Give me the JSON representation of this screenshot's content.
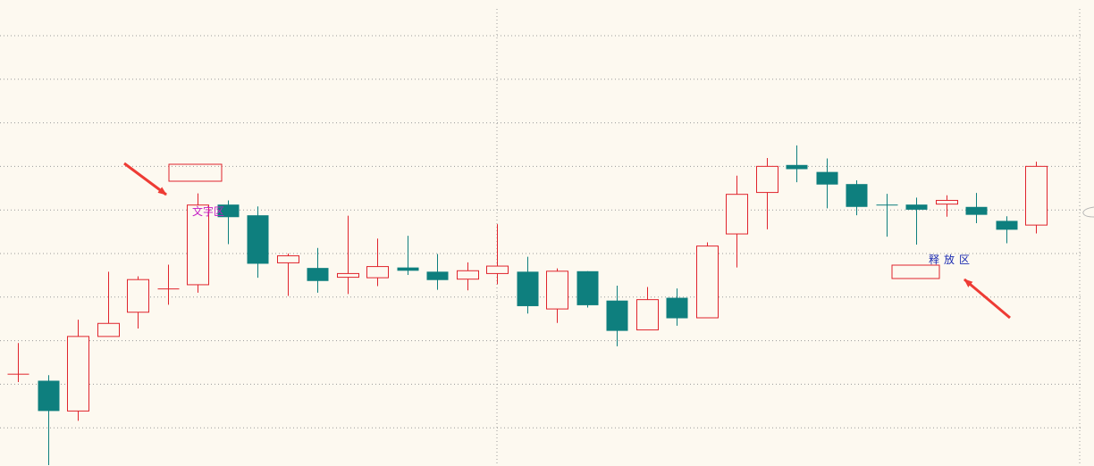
{
  "colors": {
    "background": "#fdf9f0",
    "up": "#e0242c",
    "down": "#0e7f7e",
    "grid": "#9a9a9a",
    "arrow": "#ee3b34",
    "label_magenta": "#c41ec4",
    "label_blue": "#1a2ab0"
  },
  "annotations": {
    "text_zone_label": "文字区",
    "release_zone_label": "释放区"
  },
  "chart_data": {
    "type": "candlestick",
    "title": "",
    "xlabel": "",
    "ylabel": "",
    "grid": true,
    "ylim": [
      0,
      100
    ],
    "candles": [
      {
        "open": 19.6,
        "close": 19.7,
        "high": 26.4,
        "low": 18.0
      },
      {
        "open": 18.3,
        "close": 11.8,
        "high": 19.5,
        "low": 0.2
      },
      {
        "open": 11.8,
        "close": 27.8,
        "high": 31.4,
        "low": 9.7
      },
      {
        "open": 27.8,
        "close": 30.6,
        "high": 41.7,
        "low": 27.8
      },
      {
        "open": 33.0,
        "close": 40.0,
        "high": 40.7,
        "low": 29.5
      },
      {
        "open": 37.9,
        "close": 38.0,
        "high": 43.2,
        "low": 34.6
      },
      {
        "open": 38.9,
        "close": 56.0,
        "high": 58.5,
        "low": 37.2
      },
      {
        "open": 56.1,
        "close": 53.4,
        "high": 57.0,
        "low": 47.6
      },
      {
        "open": 53.8,
        "close": 43.4,
        "high": 55.7,
        "low": 40.4
      },
      {
        "open": 43.6,
        "close": 45.1,
        "high": 45.6,
        "low": 36.5
      },
      {
        "open": 42.5,
        "close": 39.7,
        "high": 46.8,
        "low": 37.2
      },
      {
        "open": 40.5,
        "close": 41.3,
        "high": 53.7,
        "low": 36.9
      },
      {
        "open": 40.4,
        "close": 42.8,
        "high": 48.8,
        "low": 38.6
      },
      {
        "open": 42.6,
        "close": 41.9,
        "high": 49.4,
        "low": 41.0
      },
      {
        "open": 41.7,
        "close": 39.9,
        "high": 45.5,
        "low": 37.8
      },
      {
        "open": 40.1,
        "close": 41.9,
        "high": 43.7,
        "low": 37.7
      },
      {
        "open": 41.3,
        "close": 42.9,
        "high": 51.9,
        "low": 39.0
      },
      {
        "open": 41.7,
        "close": 34.3,
        "high": 44.9,
        "low": 32.7
      },
      {
        "open": 33.7,
        "close": 41.8,
        "high": 42.4,
        "low": 30.7
      },
      {
        "open": 41.8,
        "close": 34.5,
        "high": 41.8,
        "low": 34.0
      },
      {
        "open": 35.5,
        "close": 29.0,
        "high": 38.7,
        "low": 25.7
      },
      {
        "open": 29.2,
        "close": 35.7,
        "high": 38.4,
        "low": 29.2
      },
      {
        "open": 36.1,
        "close": 31.7,
        "high": 38.1,
        "low": 30.1
      },
      {
        "open": 31.8,
        "close": 47.2,
        "high": 48.0,
        "low": 31.8
      },
      {
        "open": 49.8,
        "close": 58.3,
        "high": 62.3,
        "low": 42.6
      },
      {
        "open": 58.7,
        "close": 64.3,
        "high": 66.1,
        "low": 50.8
      },
      {
        "open": 64.6,
        "close": 63.7,
        "high": 68.8,
        "low": 60.9
      },
      {
        "open": 63.1,
        "close": 60.4,
        "high": 66.0,
        "low": 55.3
      },
      {
        "open": 60.5,
        "close": 55.6,
        "high": 61.3,
        "low": 53.8
      },
      {
        "open": 56.0,
        "close": 55.9,
        "high": 58.4,
        "low": 49.2
      },
      {
        "open": 56.1,
        "close": 55.0,
        "high": 57.6,
        "low": 47.5
      },
      {
        "open": 56.2,
        "close": 57.0,
        "high": 58.1,
        "low": 53.5
      },
      {
        "open": 55.6,
        "close": 53.9,
        "high": 58.6,
        "low": 52.1
      },
      {
        "open": 52.6,
        "close": 50.7,
        "high": 53.6,
        "low": 47.8
      },
      {
        "open": 51.7,
        "close": 64.3,
        "high": 65.3,
        "low": 49.9
      }
    ]
  }
}
